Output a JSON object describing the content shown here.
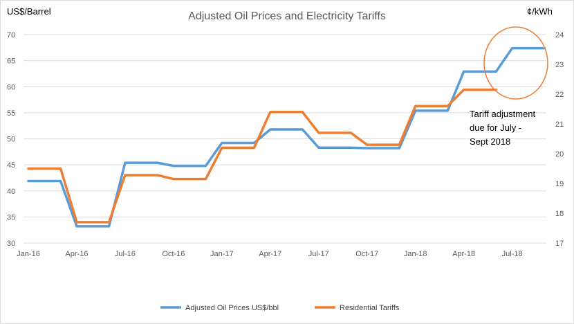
{
  "chart_data": {
    "type": "line",
    "title": "Adjusted Oil Prices and Electricity Tariffs",
    "y_left_label": "US$/Barrel",
    "y_right_label": "¢/kWh",
    "y_left_lim": [
      30,
      70
    ],
    "y_left_ticks": [
      "30",
      "35",
      "40",
      "45",
      "50",
      "55",
      "60",
      "65",
      "70"
    ],
    "y_right_lim": [
      17,
      24
    ],
    "y_right_ticks": [
      "17",
      "18",
      "19",
      "20",
      "21",
      "22",
      "23",
      "24"
    ],
    "x": [
      "Jan-16",
      "Feb-16",
      "Mar-16",
      "Apr-16",
      "May-16",
      "Jun-16",
      "Jul-16",
      "Aug-16",
      "Sep-16",
      "Oct-16",
      "Nov-16",
      "Dec-16",
      "Jan-17",
      "Feb-17",
      "Mar-17",
      "Apr-17",
      "May-17",
      "Jun-17",
      "Jul-17",
      "Aug-17",
      "Sep-17",
      "Oct-17",
      "Nov-17",
      "Dec-17",
      "Jan-18",
      "Feb-18",
      "Mar-18",
      "Apr-18",
      "May-18",
      "Jun-18",
      "Jul-18",
      "Aug-18",
      "Sep-18"
    ],
    "x_tick_labels": [
      "Jan-16",
      "Apr-16",
      "Jul-16",
      "Oct-16",
      "Jan-17",
      "Apr-17",
      "Jul-17",
      "Oct-17",
      "Jan-18",
      "Apr-18",
      "Jul-18"
    ],
    "grid": "horizontal",
    "legend_position": "bottom",
    "series": [
      {
        "name": "Adjusted Oil Prices US$/bbl",
        "axis": "left",
        "color": "#5B9BD5",
        "values": [
          41.9,
          41.9,
          41.9,
          33.2,
          33.2,
          33.2,
          45.4,
          45.4,
          45.4,
          44.8,
          44.8,
          44.8,
          49.2,
          49.2,
          49.2,
          51.8,
          51.8,
          51.8,
          48.3,
          48.3,
          48.3,
          48.2,
          48.2,
          48.2,
          55.4,
          55.4,
          55.4,
          62.9,
          62.9,
          62.9,
          67.4,
          67.4,
          67.4
        ]
      },
      {
        "name": "Residential Tariffs",
        "axis": "right",
        "color": "#ED7D31",
        "values": [
          19.5,
          19.5,
          19.5,
          17.7,
          17.7,
          17.7,
          19.28,
          19.28,
          19.28,
          19.15,
          19.15,
          19.15,
          20.2,
          20.2,
          20.2,
          21.4,
          21.4,
          21.4,
          20.7,
          20.7,
          20.7,
          20.3,
          20.3,
          20.3,
          21.6,
          21.6,
          21.6,
          22.15,
          22.15,
          22.15,
          null,
          null,
          null
        ]
      }
    ],
    "annotation": {
      "lines": [
        "Tariff adjustment",
        "due for July -",
        "Sept 2018"
      ],
      "highlight_color": "#ED7D31"
    }
  }
}
